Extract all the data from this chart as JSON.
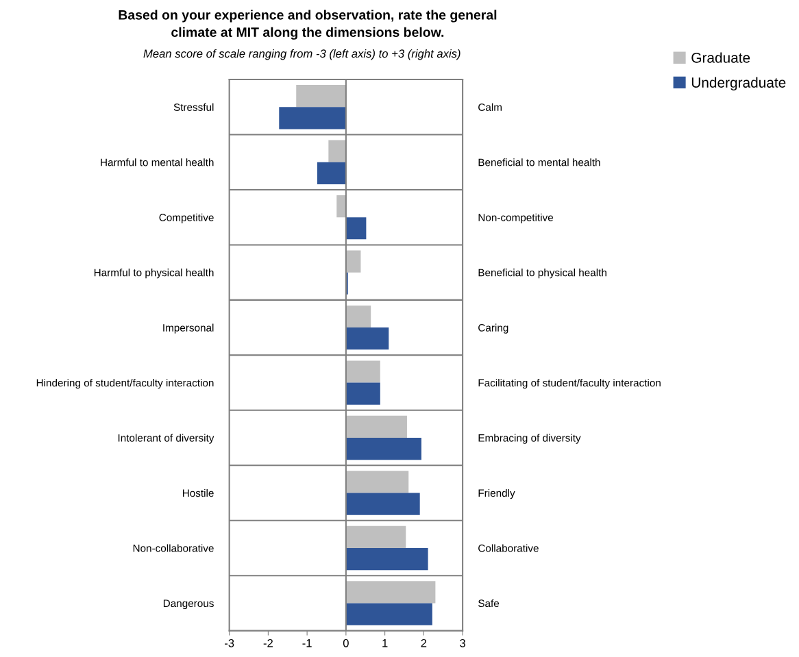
{
  "chart_data": {
    "type": "bar",
    "orientation": "horizontal",
    "title": "Based on your experience and observation, rate the general\nclimate at MIT along the dimensions below.",
    "subtitle": "Mean score of scale ranging from -3 (left axis) to +3 (right axis)",
    "categories": [
      "Stressful",
      "Harmful to mental health",
      "Competitive",
      "Harmful to physical health",
      "Impersonal",
      "Hindering of student/faculty interaction",
      "Intolerant of diversity",
      "Hostile",
      "Non-collaborative",
      "Dangerous"
    ],
    "y2_categories": [
      "Calm",
      "Beneficial to mental health",
      "Non-competitive",
      "Beneficial to physical health",
      "Caring",
      "Facilitating of student/faculty interaction",
      "Embracing of diversity",
      "Friendly",
      "Collaborative",
      "Safe"
    ],
    "series": [
      {
        "name": "Graduate",
        "color": "#bfbfbf",
        "values": [
          -1.28,
          -0.45,
          -0.24,
          0.38,
          0.64,
          0.88,
          1.57,
          1.61,
          1.54,
          2.3
        ]
      },
      {
        "name": "Undergraduate",
        "color": "#2f5597",
        "values": [
          -1.72,
          -0.74,
          0.52,
          0.05,
          1.1,
          0.88,
          1.94,
          1.9,
          2.11,
          2.22
        ]
      }
    ],
    "xlim": [
      -3,
      3
    ],
    "xticks": [
      -3,
      -2,
      -1,
      0,
      1,
      2,
      3
    ],
    "ref_lines": [
      {
        "axis": "x",
        "value": 0,
        "color": "#7f7f7f"
      }
    ],
    "grid": "y",
    "legend": "top right"
  }
}
